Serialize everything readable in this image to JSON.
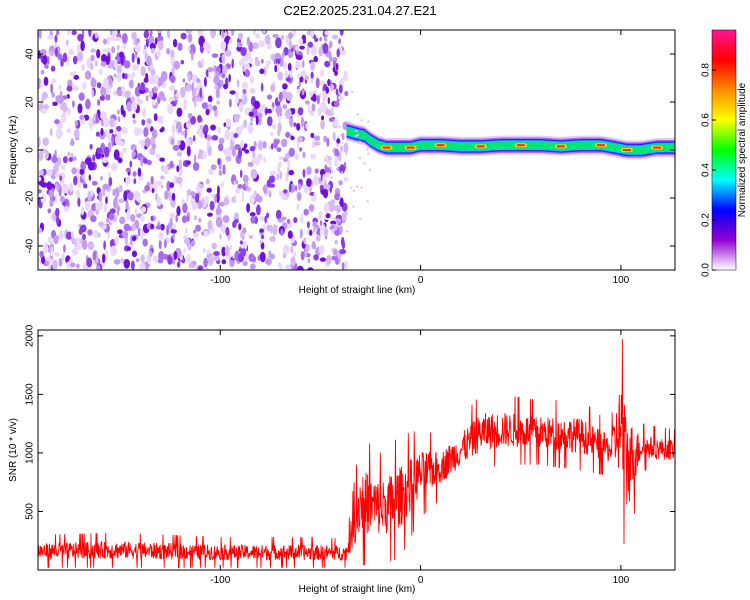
{
  "title": "C2E2.2025.231.04.27.E21",
  "chart_data": [
    {
      "type": "heatmap",
      "xlabel": "Height of straight line (km)",
      "ylabel": "Frequency (Hz)",
      "xlim": [
        -191,
        127
      ],
      "ylim": [
        -50,
        50
      ],
      "x_ticks": [
        -100,
        0,
        100
      ],
      "y_ticks": [
        -40,
        -20,
        0,
        20,
        40
      ],
      "colorbar": {
        "label": "Normalized spectral amplitude",
        "range": [
          0,
          0.96
        ],
        "ticks": [
          0,
          0.2,
          0.4,
          0.6,
          0.8
        ],
        "colors": [
          "#ffffff",
          "#9400d3",
          "#0000ff",
          "#00ffff",
          "#00ff00",
          "#ffff00",
          "#ff8c00",
          "#ff0000",
          "#ff1493"
        ]
      },
      "noise_region_x": [
        -191,
        -37
      ],
      "ridge": [
        {
          "x": -37,
          "freq": 8
        },
        {
          "x": -33,
          "freq": 7
        },
        {
          "x": -28,
          "freq": 6
        },
        {
          "x": -25,
          "freq": 4
        },
        {
          "x": -21,
          "freq": 2
        },
        {
          "x": -17,
          "freq": 1
        },
        {
          "x": -12,
          "freq": 1
        },
        {
          "x": -5,
          "freq": 1
        },
        {
          "x": 0,
          "freq": 2
        },
        {
          "x": 10,
          "freq": 2
        },
        {
          "x": 20,
          "freq": 1.5
        },
        {
          "x": 30,
          "freq": 1.5
        },
        {
          "x": 40,
          "freq": 2
        },
        {
          "x": 50,
          "freq": 2
        },
        {
          "x": 60,
          "freq": 2
        },
        {
          "x": 70,
          "freq": 1.5
        },
        {
          "x": 80,
          "freq": 2
        },
        {
          "x": 90,
          "freq": 2
        },
        {
          "x": 97,
          "freq": 1
        },
        {
          "x": 103,
          "freq": 0
        },
        {
          "x": 110,
          "freq": 0
        },
        {
          "x": 118,
          "freq": 1
        },
        {
          "x": 127,
          "freq": 1
        }
      ]
    },
    {
      "type": "line",
      "xlabel": "Height of straight line (km)",
      "ylabel": "SNR (10 * v/v)",
      "xlim": [
        -191,
        127
      ],
      "ylim": [
        0,
        2050
      ],
      "x_ticks": [
        -100,
        0,
        100
      ],
      "y_ticks": [
        500,
        1000,
        1500,
        2000
      ],
      "series": [
        {
          "color": "#ff0000",
          "envelope": [
            {
              "x": -191,
              "low": 20,
              "high": 300
            },
            {
              "x": -150,
              "low": 20,
              "high": 320
            },
            {
              "x": -100,
              "low": 20,
              "high": 280
            },
            {
              "x": -60,
              "low": 20,
              "high": 280
            },
            {
              "x": -37,
              "low": 20,
              "high": 270
            },
            {
              "x": -30,
              "low": 40,
              "high": 1150
            },
            {
              "x": -20,
              "low": 50,
              "high": 1000
            },
            {
              "x": -10,
              "low": 100,
              "high": 1150
            },
            {
              "x": 0,
              "low": 450,
              "high": 1200
            },
            {
              "x": 10,
              "low": 600,
              "high": 1150
            },
            {
              "x": 20,
              "low": 750,
              "high": 1300
            },
            {
              "x": 30,
              "low": 850,
              "high": 1500
            },
            {
              "x": 40,
              "low": 900,
              "high": 1500
            },
            {
              "x": 60,
              "low": 900,
              "high": 1450
            },
            {
              "x": 80,
              "low": 850,
              "high": 1450
            },
            {
              "x": 95,
              "low": 800,
              "high": 1250
            },
            {
              "x": 100,
              "low": 400,
              "high": 2050
            },
            {
              "x": 103,
              "low": 60,
              "high": 1750
            },
            {
              "x": 110,
              "low": 850,
              "high": 1250
            },
            {
              "x": 127,
              "low": 850,
              "high": 1200
            }
          ]
        }
      ]
    }
  ]
}
